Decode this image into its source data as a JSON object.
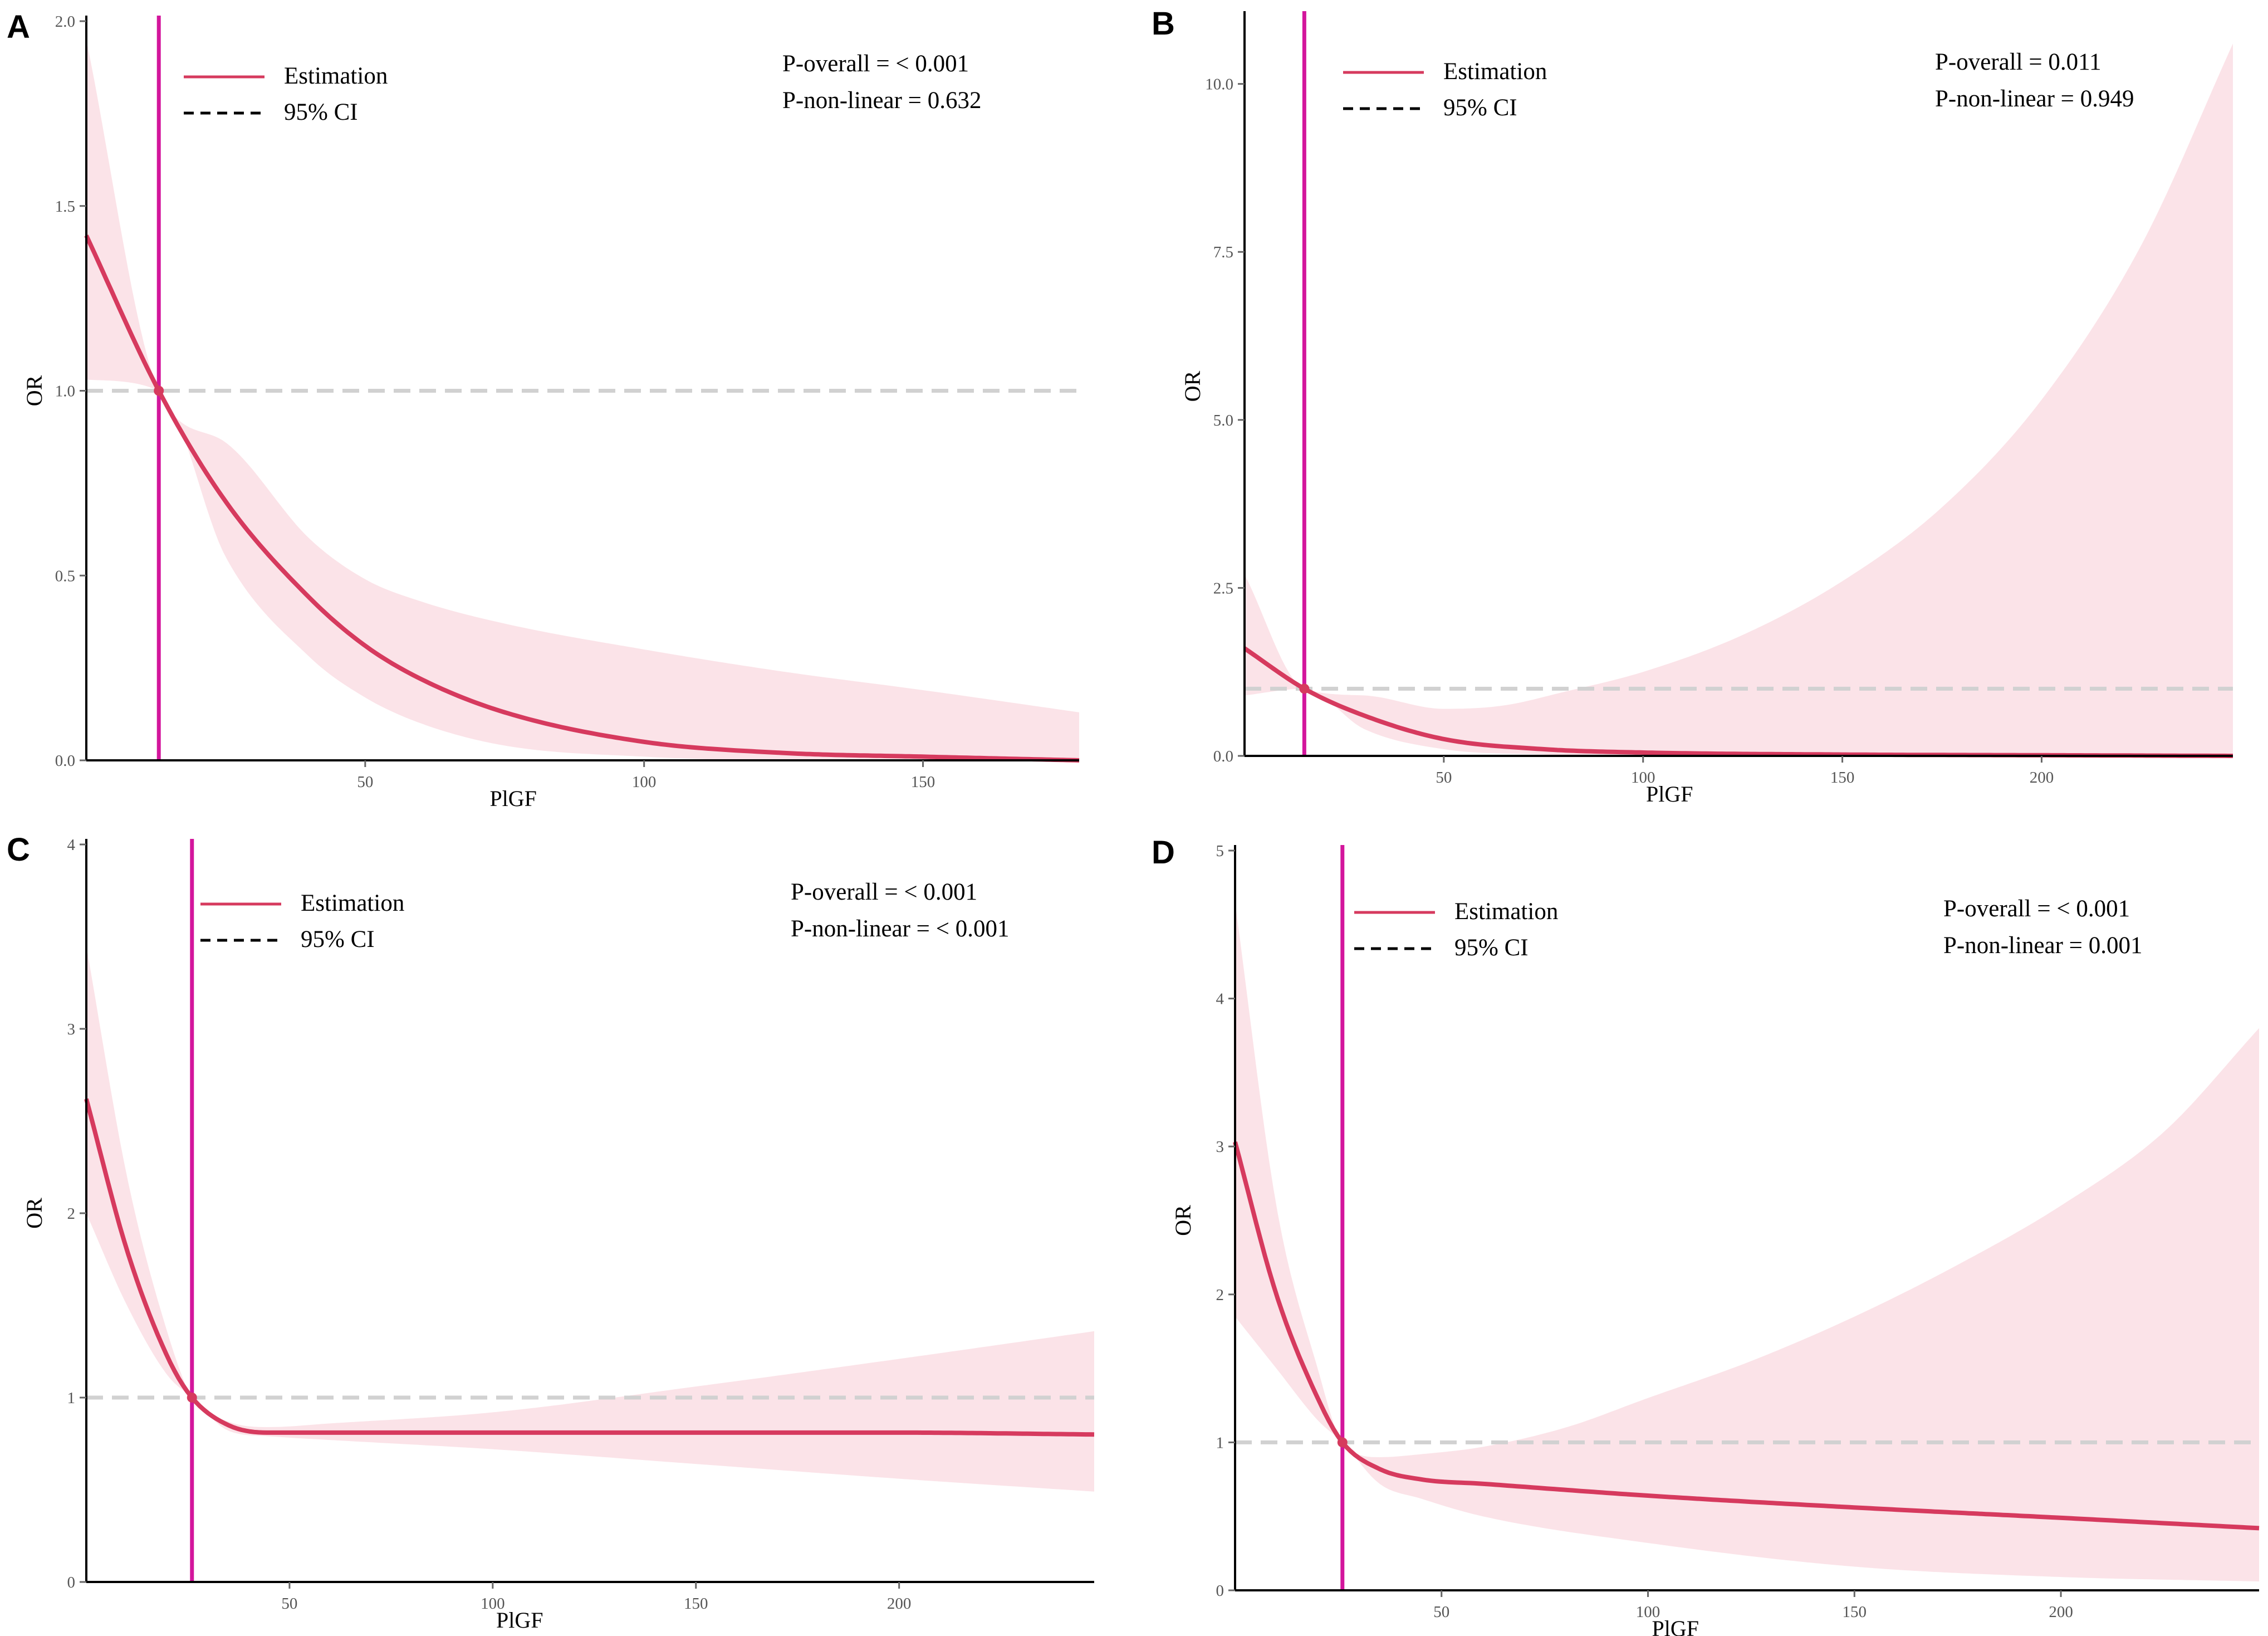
{
  "colors": {
    "estimate": "#d63a5e",
    "ci_fill": "#fbe3e8",
    "reference_line": "#d1d1d1",
    "vertical_line": "#d3169c",
    "axis": "#000000"
  },
  "chart_data": [
    {
      "panel": "A",
      "type": "line",
      "xlabel": "PlGF",
      "ylabel": "OR",
      "xlim": [
        0,
        178
      ],
      "ylim": [
        0,
        2
      ],
      "xticks": [
        50,
        100,
        150
      ],
      "yticks": [
        0.0,
        0.5,
        1.0,
        1.5,
        2.0
      ],
      "ytick_labels": [
        "0.0",
        "0.5",
        "1.0",
        "1.5",
        "2.0"
      ],
      "reference_or": 1.0,
      "vertical_x": 13,
      "legend": [
        "Estimation",
        "95% CI"
      ],
      "annotations": [
        "P-overall = < 0.001",
        "P-non-linear = 0.632"
      ],
      "series": [
        {
          "name": "Estimation",
          "x": [
            0,
            13,
            25,
            40,
            50,
            60,
            75,
            100,
            125,
            150,
            178
          ],
          "values": [
            1.42,
            1.0,
            0.7,
            0.44,
            0.31,
            0.22,
            0.13,
            0.05,
            0.02,
            0.01,
            0.0
          ]
        },
        {
          "name": "95% CI lower",
          "x": [
            0,
            13,
            25,
            40,
            50,
            60,
            75,
            100,
            125,
            150,
            178
          ],
          "values": [
            1.03,
            1.0,
            0.55,
            0.28,
            0.17,
            0.1,
            0.04,
            0.01,
            0.0,
            0.0,
            0.0
          ]
        },
        {
          "name": "95% CI upper",
          "x": [
            0,
            13,
            25,
            40,
            50,
            60,
            75,
            100,
            125,
            150,
            178
          ],
          "values": [
            1.95,
            1.0,
            0.86,
            0.6,
            0.49,
            0.43,
            0.37,
            0.3,
            0.24,
            0.19,
            0.13
          ]
        }
      ]
    },
    {
      "panel": "B",
      "type": "line",
      "xlabel": "PlGF",
      "ylabel": "OR",
      "xlim": [
        0,
        248
      ],
      "ylim": [
        0,
        11
      ],
      "xticks": [
        50,
        100,
        150,
        200
      ],
      "yticks": [
        0.0,
        2.5,
        5.0,
        7.5,
        10.0
      ],
      "ytick_labels": [
        "0.0",
        "2.5",
        "5.0",
        "7.5",
        "10.0"
      ],
      "reference_or": 1.0,
      "vertical_x": 15,
      "legend": [
        "Estimation",
        "95% CI"
      ],
      "annotations": [
        "P-overall = 0.011",
        "P-non-linear = 0.949"
      ],
      "series": [
        {
          "name": "Estimation",
          "x": [
            0,
            15,
            30,
            50,
            75,
            100,
            150,
            200,
            248
          ],
          "values": [
            1.6,
            1.0,
            0.6,
            0.25,
            0.1,
            0.05,
            0.02,
            0.01,
            0.0
          ]
        },
        {
          "name": "95% CI lower",
          "x": [
            0,
            15,
            30,
            50,
            75,
            100,
            150,
            200,
            248
          ],
          "values": [
            0.9,
            1.0,
            0.4,
            0.1,
            0.02,
            0.0,
            0.0,
            0.0,
            0.0
          ]
        },
        {
          "name": "95% CI upper",
          "x": [
            0,
            15,
            30,
            50,
            65,
            80,
            100,
            125,
            150,
            175,
            200,
            225,
            248
          ],
          "values": [
            2.7,
            1.0,
            0.9,
            0.7,
            0.75,
            0.95,
            1.25,
            1.8,
            2.6,
            3.7,
            5.3,
            7.6,
            10.6
          ]
        }
      ]
    },
    {
      "panel": "C",
      "type": "line",
      "xlabel": "PlGF",
      "ylabel": "OR",
      "xlim": [
        0,
        248
      ],
      "ylim": [
        0,
        4
      ],
      "xticks": [
        50,
        100,
        150,
        200
      ],
      "yticks": [
        0,
        1,
        2,
        3,
        4
      ],
      "ytick_labels": [
        "0",
        "1",
        "2",
        "3",
        "4"
      ],
      "reference_or": 1.0,
      "vertical_x": 26,
      "legend": [
        "Estimation",
        "95% CI"
      ],
      "annotations": [
        "P-overall = < 0.001",
        "P-non-linear = < 0.001"
      ],
      "series": [
        {
          "name": "Estimation",
          "x": [
            0,
            10,
            20,
            26,
            35,
            45,
            60,
            100,
            150,
            200,
            248
          ],
          "values": [
            2.62,
            1.8,
            1.22,
            1.0,
            0.85,
            0.81,
            0.81,
            0.81,
            0.81,
            0.81,
            0.8
          ]
        },
        {
          "name": "95% CI lower",
          "x": [
            0,
            10,
            20,
            26,
            35,
            45,
            60,
            100,
            150,
            200,
            248
          ],
          "values": [
            2.0,
            1.5,
            1.12,
            1.0,
            0.82,
            0.79,
            0.77,
            0.72,
            0.64,
            0.56,
            0.49
          ]
        },
        {
          "name": "95% CI upper",
          "x": [
            0,
            10,
            20,
            26,
            35,
            45,
            60,
            100,
            150,
            200,
            248
          ],
          "values": [
            3.45,
            2.2,
            1.35,
            1.0,
            0.87,
            0.84,
            0.86,
            0.92,
            1.06,
            1.21,
            1.36
          ]
        }
      ]
    },
    {
      "panel": "D",
      "type": "line",
      "xlabel": "PlGF",
      "ylabel": "OR",
      "xlim": [
        0,
        248
      ],
      "ylim": [
        0,
        5
      ],
      "xticks": [
        50,
        100,
        150,
        200
      ],
      "yticks": [
        0,
        1,
        2,
        3,
        4,
        5
      ],
      "ytick_labels": [
        "0",
        "1",
        "2",
        "3",
        "4",
        "5"
      ],
      "reference_or": 1.0,
      "vertical_x": 26,
      "legend": [
        "Estimation",
        "95% CI"
      ],
      "annotations": [
        "P-overall = < 0.001",
        "P-non-linear = 0.001"
      ],
      "series": [
        {
          "name": "Estimation",
          "x": [
            0,
            10,
            20,
            26,
            35,
            45,
            60,
            100,
            150,
            200,
            248
          ],
          "values": [
            3.03,
            2.0,
            1.3,
            1.0,
            0.82,
            0.75,
            0.72,
            0.64,
            0.56,
            0.49,
            0.42
          ]
        },
        {
          "name": "95% CI lower",
          "x": [
            0,
            10,
            20,
            26,
            35,
            45,
            60,
            100,
            150,
            200,
            248
          ],
          "values": [
            1.85,
            1.5,
            1.15,
            1.0,
            0.72,
            0.62,
            0.5,
            0.32,
            0.16,
            0.09,
            0.06
          ]
        },
        {
          "name": "95% CI upper",
          "x": [
            0,
            10,
            20,
            26,
            35,
            45,
            60,
            80,
            100,
            125,
            150,
            175,
            200,
            225,
            248
          ],
          "values": [
            4.65,
            2.6,
            1.5,
            1.0,
            0.9,
            0.92,
            0.97,
            1.1,
            1.3,
            1.55,
            1.85,
            2.2,
            2.6,
            3.1,
            3.8
          ]
        }
      ]
    }
  ]
}
